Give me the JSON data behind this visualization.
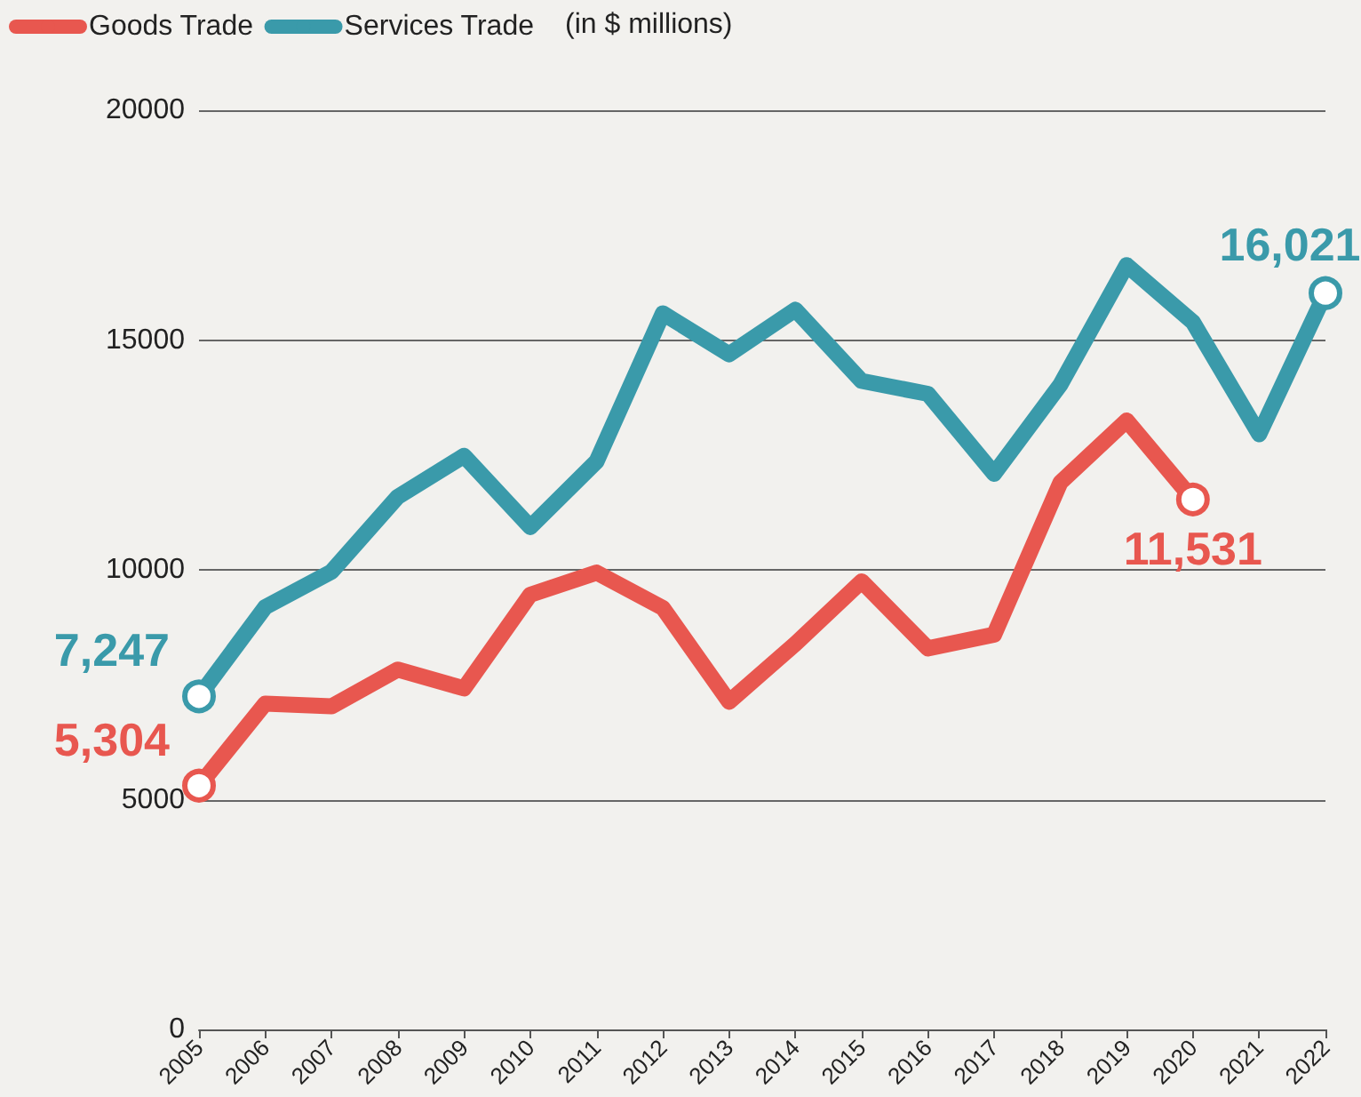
{
  "chart_data": {
    "type": "line",
    "categories": [
      "2005",
      "2006",
      "2007",
      "2008",
      "2009",
      "2010",
      "2011",
      "2012",
      "2013",
      "2014",
      "2015",
      "2016",
      "2017",
      "2018",
      "2019",
      "2020",
      "2021",
      "2022"
    ],
    "series": [
      {
        "name": "Goods Trade",
        "color": "#e8574f",
        "values": [
          5304,
          7090,
          7030,
          7830,
          7420,
          9460,
          9940,
          9170,
          7130,
          8390,
          9750,
          8290,
          8590,
          11900,
          13250,
          11531,
          null,
          null
        ],
        "value_labels": [
          "5,304",
          null,
          null,
          null,
          null,
          null,
          null,
          null,
          null,
          null,
          null,
          null,
          null,
          null,
          null,
          "11,531",
          null,
          null
        ]
      },
      {
        "name": "Services Trade",
        "color": "#3a9aaa",
        "values": [
          7247,
          9190,
          9960,
          11590,
          12480,
          10930,
          12360,
          15580,
          14690,
          15660,
          14110,
          13830,
          12090,
          14030,
          16630,
          15390,
          12950,
          16021
        ],
        "value_labels": [
          "7,247",
          null,
          null,
          null,
          null,
          null,
          null,
          null,
          null,
          null,
          null,
          null,
          null,
          null,
          null,
          null,
          null,
          "16,021"
        ]
      }
    ],
    "ylim": [
      0,
      20000
    ],
    "yticks": [
      0,
      5000,
      10000,
      15000,
      20000
    ],
    "grid": "y",
    "legend": "top left",
    "line_style": "solid",
    "annotations": [
      "(in $ millions)"
    ]
  }
}
